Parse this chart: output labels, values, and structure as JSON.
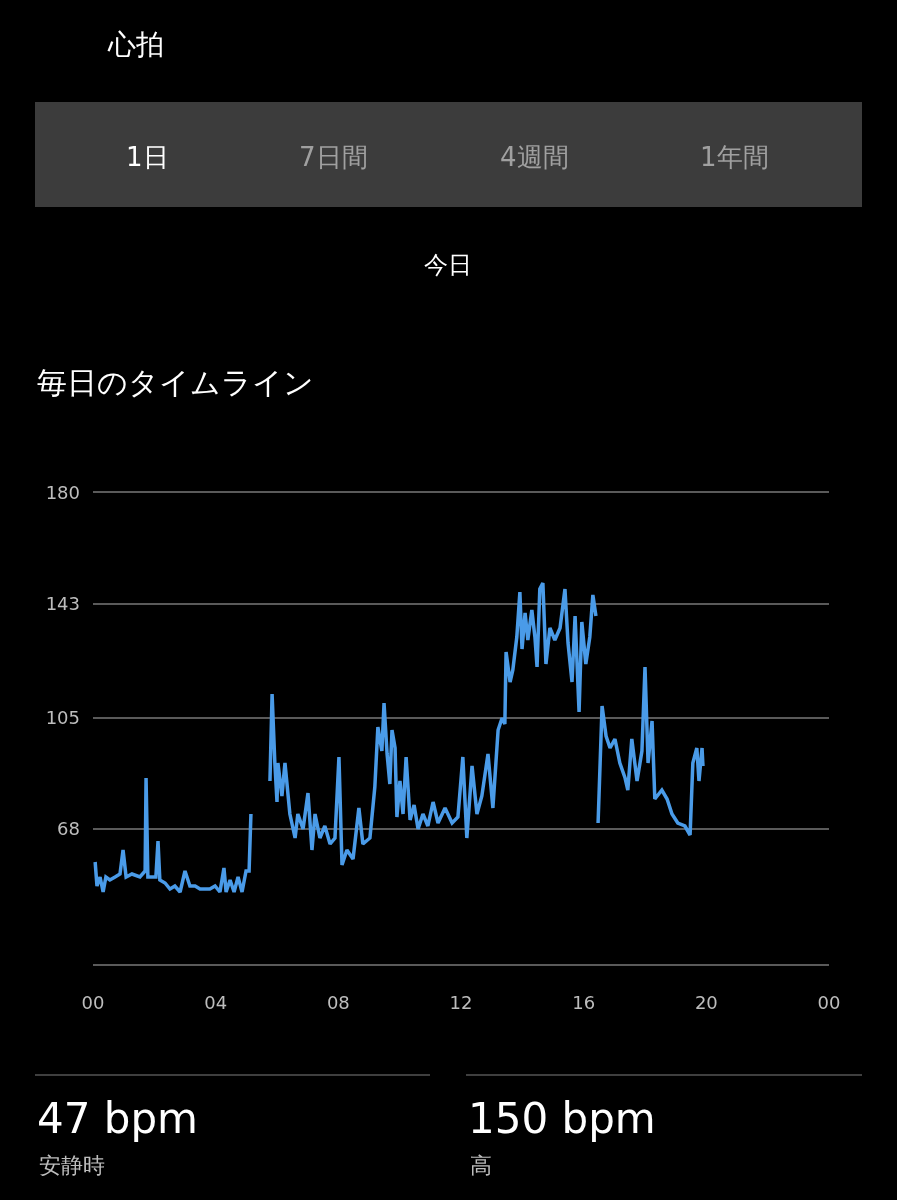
{
  "chart_data": {
    "type": "line",
    "title": "毎日のタイムライン",
    "annotations": [
      "心拍",
      "1日",
      "7日間",
      "4週間",
      "1年間",
      "今日",
      "47 bpm",
      "安静時",
      "150 bpm",
      "高"
    ],
    "series": [
      {
        "color": "#4a9be8",
        "x": [
          0.07,
          0.13,
          0.23,
          0.33,
          0.42,
          0.55,
          0.72,
          0.88,
          0.98,
          1.08,
          1.27,
          1.53,
          1.7,
          1.73,
          1.79,
          1.92,
          2.05,
          2.12,
          2.18,
          2.35,
          2.51,
          2.67,
          2.84,
          3.0,
          3.16,
          3.33,
          3.49,
          3.65,
          3.81,
          3.98,
          4.14,
          4.27,
          4.34,
          4.47,
          4.6,
          4.73,
          4.86,
          4.99,
          5.09,
          5.15,
          5.5,
          5.77,
          5.84,
          5.93,
          6.0,
          6.03,
          6.16,
          6.26,
          6.42,
          6.59,
          6.68,
          6.85,
          7.01,
          7.14,
          7.24,
          7.4,
          7.56,
          7.73,
          7.89,
          8.02,
          8.12,
          8.28,
          8.48,
          8.67,
          8.8,
          9.03,
          9.19,
          9.29,
          9.42,
          9.49,
          9.59,
          9.68,
          9.75,
          9.85,
          9.91,
          10.01,
          10.11,
          10.21,
          10.34,
          10.47,
          10.6,
          10.76,
          10.92,
          11.09,
          11.25,
          11.48,
          11.71,
          11.9,
          12.06,
          12.19,
          12.36,
          12.52,
          12.68,
          12.88,
          13.04,
          13.21,
          13.34,
          13.43,
          13.47,
          13.6,
          13.69,
          13.82,
          13.92,
          13.99,
          14.09,
          14.18,
          14.31,
          14.41,
          14.48,
          14.57,
          14.67,
          14.77,
          14.9,
          15.06,
          15.23,
          15.39,
          15.49,
          15.62,
          15.72,
          15.85,
          15.94,
          16.07,
          16.2,
          16.3,
          16.4,
          16.44,
          16.47,
          16.6,
          16.73,
          16.86,
          17.02,
          17.18,
          17.35,
          17.44,
          17.57,
          17.74,
          17.9,
          18.0,
          18.1,
          18.23,
          18.32,
          18.55,
          18.72,
          18.88,
          19.07,
          19.3,
          19.47,
          19.56,
          19.69,
          19.76,
          19.86,
          19.89
        ],
        "values": [
          57,
          49,
          52,
          47,
          52,
          51,
          52,
          53,
          61,
          52,
          53,
          52,
          54,
          85,
          52,
          52,
          52,
          64,
          51,
          50,
          48,
          49,
          47,
          54,
          49,
          49,
          48,
          48,
          48,
          49,
          47,
          55,
          47,
          51,
          47,
          52,
          47,
          54,
          54,
          73,
          null,
          84,
          113,
          90,
          77,
          90,
          79,
          90,
          73,
          65,
          73,
          68,
          80,
          61,
          73,
          65,
          69,
          63,
          65,
          92,
          56,
          61,
          58,
          75,
          63,
          65,
          82,
          102,
          94,
          110,
          93,
          83,
          101,
          95,
          72,
          84,
          73,
          92,
          71,
          76,
          68,
          73,
          69,
          77,
          70,
          75,
          70,
          72,
          92,
          65,
          89,
          73,
          79,
          93,
          75,
          101,
          105,
          103,
          127,
          117,
          121,
          132,
          147,
          128,
          140,
          131,
          141,
          132,
          122,
          148,
          150,
          123,
          135,
          131,
          135,
          148,
          130,
          117,
          139,
          107,
          137,
          123,
          132,
          146,
          139,
          null,
          70,
          109,
          99,
          95,
          98,
          90,
          85,
          81,
          98,
          84,
          94,
          122,
          90,
          104,
          78,
          81,
          78,
          73,
          70,
          69,
          66,
          90,
          95,
          84,
          95,
          89
        ]
      }
    ],
    "xlim": [
      0,
      24
    ],
    "xticks": [
      {
        "value": 0,
        "label": "00"
      },
      {
        "value": 4,
        "label": "04"
      },
      {
        "value": 8,
        "label": "08"
      },
      {
        "value": 12,
        "label": "12"
      },
      {
        "value": 16,
        "label": "16"
      },
      {
        "value": 20,
        "label": "20"
      },
      {
        "value": 24,
        "label": "00"
      }
    ],
    "ylim": [
      23,
      180
    ],
    "yticks": [
      68,
      105,
      143,
      180
    ],
    "grid": "y",
    "marker": "none",
    "line_style": "solid"
  }
}
